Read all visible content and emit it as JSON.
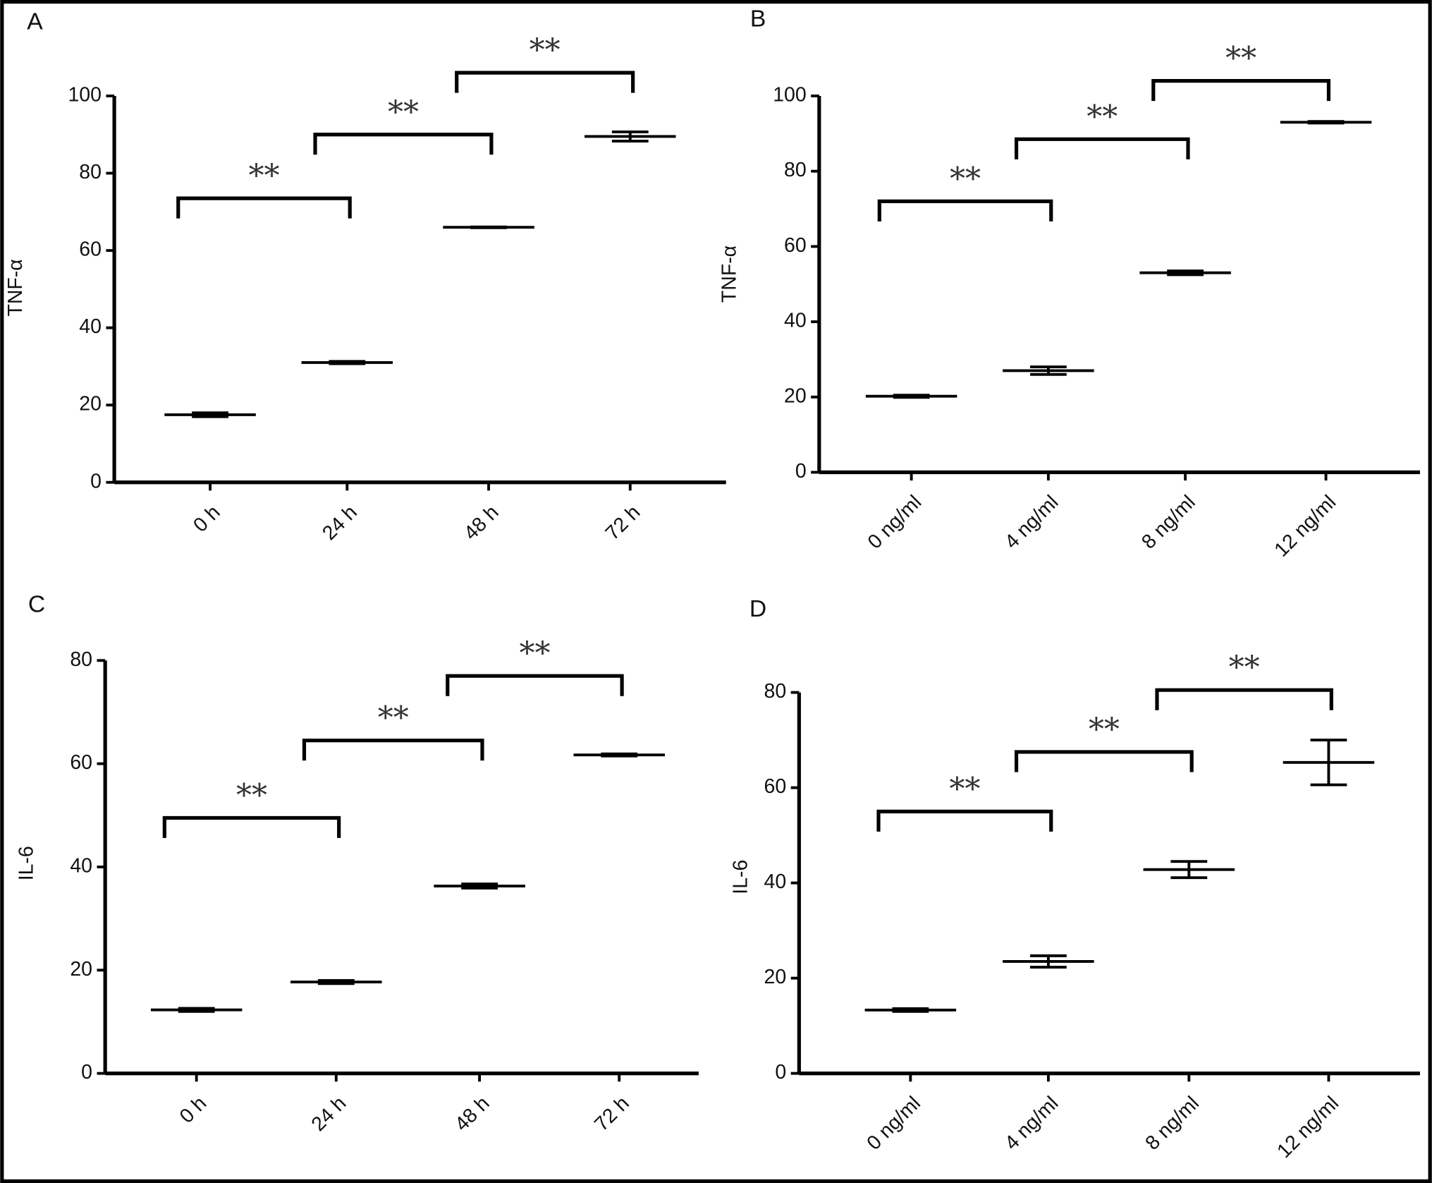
{
  "chart_data": [
    {
      "type": "errorbar",
      "label": "A",
      "ylabel": "TNF-α",
      "categories": [
        "0 h",
        "24 h",
        "48 h",
        "72 h"
      ],
      "series": [
        {
          "color": "#000000",
          "values": [
            17.5,
            31,
            66,
            89.5
          ],
          "errors": [
            0.5,
            0.3,
            0.1,
            1.2
          ]
        }
      ],
      "ylim": [
        0,
        100
      ],
      "yticks": [
        0,
        20,
        40,
        60,
        80,
        100
      ],
      "annotations": [
        {
          "text": "**",
          "between": [
            "0 h",
            "24 h"
          ],
          "y": 73.5
        },
        {
          "text": "**",
          "between": [
            "24 h",
            "48 h"
          ],
          "y": 90
        },
        {
          "text": "**",
          "between": [
            "48 h",
            "72 h"
          ],
          "y": 106
        }
      ]
    },
    {
      "type": "errorbar",
      "label": "B",
      "ylabel": "TNF-α",
      "categories": [
        "0 ng/ml",
        "4 ng/ml",
        "8 ng/ml",
        "12 ng/ml"
      ],
      "series": [
        {
          "color": "#000000",
          "values": [
            20.2,
            27,
            53,
            93
          ],
          "errors": [
            0.3,
            1,
            0.5,
            0.2
          ]
        }
      ],
      "ylim": [
        0,
        100
      ],
      "yticks": [
        0,
        20,
        40,
        60,
        80,
        100
      ],
      "annotations": [
        {
          "text": "**",
          "between": [
            "0 ng/ml",
            "4 ng/ml"
          ],
          "y": 72
        },
        {
          "text": "**",
          "between": [
            "4 ng/ml",
            "8 ng/ml"
          ],
          "y": 88.5
        },
        {
          "text": "**",
          "between": [
            "8 ng/ml",
            "12 ng/ml"
          ],
          "y": 104
        }
      ]
    },
    {
      "type": "errorbar",
      "label": "C",
      "ylabel": "IL-6",
      "categories": [
        "0 h",
        "24 h",
        "48 h",
        "72 h"
      ],
      "series": [
        {
          "color": "#000000",
          "values": [
            12.3,
            17.7,
            36.3,
            61.7
          ],
          "errors": [
            0.3,
            0.3,
            0.4,
            0.2
          ]
        }
      ],
      "ylim": [
        0,
        80
      ],
      "yticks": [
        0,
        20,
        40,
        60,
        80
      ],
      "annotations": [
        {
          "text": "**",
          "between": [
            "0 h",
            "24 h"
          ],
          "y": 49.5
        },
        {
          "text": "**",
          "between": [
            "24 h",
            "48 h"
          ],
          "y": 64.5
        },
        {
          "text": "**",
          "between": [
            "48 h",
            "72 h"
          ],
          "y": 77
        }
      ]
    },
    {
      "type": "errorbar",
      "label": "D",
      "ylabel": "IL-6",
      "categories": [
        "0 ng/ml",
        "4 ng/ml",
        "8 ng/ml",
        "12 ng/ml"
      ],
      "series": [
        {
          "color": "#000000",
          "values": [
            13.3,
            23.5,
            42.8,
            65.3
          ],
          "errors": [
            0.3,
            1.2,
            1.7,
            4.7
          ]
        }
      ],
      "ylim": [
        0,
        80
      ],
      "yticks": [
        0,
        20,
        40,
        60,
        80
      ],
      "annotations": [
        {
          "text": "**",
          "between": [
            "0 ng/ml",
            "4 ng/ml"
          ],
          "y": 55
        },
        {
          "text": "**",
          "between": [
            "4 ng/ml",
            "8 ng/ml"
          ],
          "y": 67.5
        },
        {
          "text": "**",
          "between": [
            "8 ng/ml",
            "12 ng/ml"
          ],
          "y": 80.5
        }
      ]
    }
  ]
}
